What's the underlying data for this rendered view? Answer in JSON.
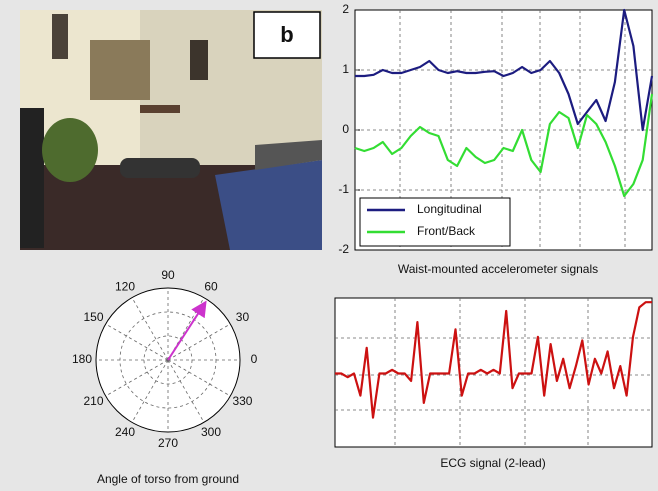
{
  "panel_label": "b",
  "chart_data": [
    {
      "type": "line",
      "title": "Waist-mounted accelerometer signals",
      "ylim": [
        -2,
        2
      ],
      "yticks": [
        -2,
        -1,
        0,
        1,
        2
      ],
      "legend": "lower left",
      "series": [
        {
          "name": "Longitudinal",
          "color": "#1c1c80",
          "values": [
            0.9,
            0.9,
            0.92,
            1.0,
            0.95,
            0.95,
            1.0,
            1.05,
            1.15,
            1.0,
            0.95,
            0.98,
            0.95,
            0.95,
            0.97,
            0.98,
            0.9,
            0.95,
            1.05,
            0.95,
            1.0,
            1.15,
            0.95,
            0.6,
            0.1,
            0.3,
            0.5,
            0.15,
            0.8,
            2.0,
            1.4,
            0.0,
            0.9
          ]
        },
        {
          "name": "Front/Back",
          "color": "#33dd33",
          "values": [
            -0.3,
            -0.35,
            -0.3,
            -0.2,
            -0.4,
            -0.3,
            -0.1,
            0.05,
            -0.05,
            -0.1,
            -0.5,
            -0.6,
            -0.3,
            -0.45,
            -0.55,
            -0.5,
            -0.3,
            -0.35,
            0.0,
            -0.5,
            -0.7,
            0.1,
            0.3,
            0.2,
            -0.3,
            0.25,
            0.1,
            -0.2,
            -0.6,
            -1.1,
            -0.9,
            -0.5,
            0.6
          ]
        }
      ]
    },
    {
      "type": "polar",
      "title": "Angle of torso from ground",
      "color": "#cc33cc",
      "values": [
        57
      ],
      "thetaticks": [
        0,
        30,
        60,
        90,
        120,
        150,
        180,
        210,
        240,
        270,
        300,
        330
      ]
    },
    {
      "type": "line",
      "title": "ECG signal (2-lead)",
      "ylim": [
        -1,
        1
      ],
      "series": [
        {
          "color": "#cc1111",
          "values": [
            0,
            0,
            -0.05,
            0,
            -0.3,
            0.35,
            -0.6,
            0,
            0,
            0.05,
            0,
            0,
            -0.1,
            0.7,
            -0.4,
            0,
            0,
            0,
            0,
            0.6,
            -0.3,
            0,
            0,
            0.05,
            0,
            0.05,
            0,
            0.85,
            -0.2,
            0,
            0,
            0,
            0.5,
            -0.3,
            0.4,
            -0.1,
            0.2,
            -0.2,
            0.1,
            0.45,
            -0.15,
            0.2,
            0,
            0.3,
            -0.2,
            0.1,
            -0.3,
            0.5,
            0.9,
            0.97,
            0.97
          ]
        }
      ]
    }
  ]
}
